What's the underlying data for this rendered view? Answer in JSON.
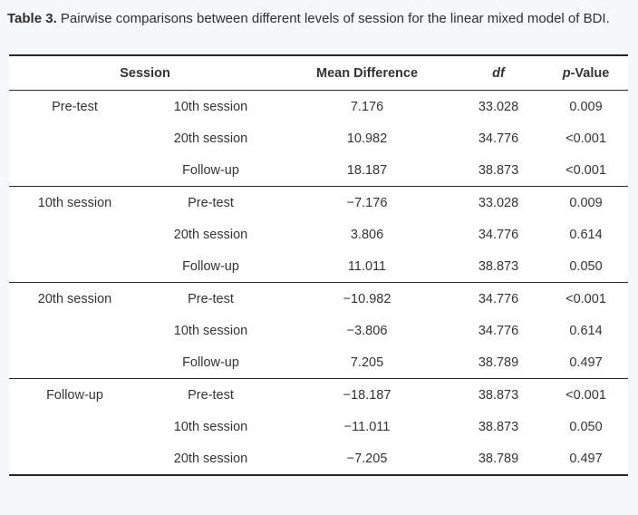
{
  "caption": {
    "label": "Table 3.",
    "text": "Pairwise comparisons between different levels of session for the linear mixed model of BDI."
  },
  "table": {
    "headers": {
      "session": "Session",
      "mean_difference": "Mean Difference",
      "df": "df",
      "p_value_italic": "p",
      "p_value_rest": "-Value"
    },
    "groups": [
      {
        "label": "Pre-test",
        "rows": [
          {
            "comparison": "10th session",
            "mean_difference": "7.176",
            "df": "33.028",
            "p_value": "0.009"
          },
          {
            "comparison": "20th session",
            "mean_difference": "10.982",
            "df": "34.776",
            "p_value": "<0.001"
          },
          {
            "comparison": "Follow-up",
            "mean_difference": "18.187",
            "df": "38.873",
            "p_value": "<0.001"
          }
        ]
      },
      {
        "label": "10th session",
        "rows": [
          {
            "comparison": "Pre-test",
            "mean_difference": "−7.176",
            "df": "33.028",
            "p_value": "0.009"
          },
          {
            "comparison": "20th session",
            "mean_difference": "3.806",
            "df": "34.776",
            "p_value": "0.614"
          },
          {
            "comparison": "Follow-up",
            "mean_difference": "11.011",
            "df": "38.873",
            "p_value": "0.050"
          }
        ]
      },
      {
        "label": "20th session",
        "rows": [
          {
            "comparison": "Pre-test",
            "mean_difference": "−10.982",
            "df": "34.776",
            "p_value": "<0.001"
          },
          {
            "comparison": "10th session",
            "mean_difference": "−3.806",
            "df": "34.776",
            "p_value": "0.614"
          },
          {
            "comparison": "Follow-up",
            "mean_difference": "7.205",
            "df": "38.789",
            "p_value": "0.497"
          }
        ]
      },
      {
        "label": "Follow-up",
        "rows": [
          {
            "comparison": "Pre-test",
            "mean_difference": "−18.187",
            "df": "38.873",
            "p_value": "<0.001"
          },
          {
            "comparison": "10th session",
            "mean_difference": "−11.011",
            "df": "38.873",
            "p_value": "0.050"
          },
          {
            "comparison": "20th session",
            "mean_difference": "−7.205",
            "df": "38.789",
            "p_value": "0.497"
          }
        ]
      }
    ]
  },
  "colors": {
    "page_background": "#f6f7f8",
    "table_background": "#ffffff",
    "text": "#333333",
    "border": "#2b2b2b"
  }
}
